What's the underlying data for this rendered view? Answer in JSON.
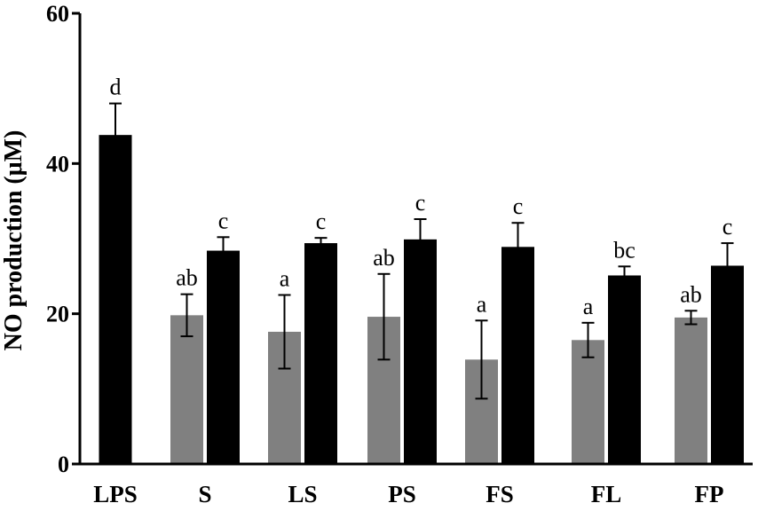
{
  "chart_data": {
    "type": "bar",
    "title": "",
    "xlabel": "",
    "ylabel": "NO production (μM)",
    "ylim": [
      0,
      60
    ],
    "yticks": [
      0,
      20,
      40,
      60
    ],
    "categories": [
      "LPS",
      "S",
      "LS",
      "PS",
      "FS",
      "FL",
      "FP"
    ],
    "series": [
      {
        "name": "gray",
        "color": "#808080",
        "values": [
          null,
          19.8,
          17.6,
          19.6,
          13.9,
          16.5,
          19.5
        ],
        "errors": [
          null,
          2.8,
          4.9,
          5.7,
          5.2,
          2.3,
          0.9
        ],
        "labels": [
          null,
          "ab",
          "a",
          "ab",
          "a",
          "a",
          "ab"
        ]
      },
      {
        "name": "black",
        "color": "#000000",
        "values": [
          43.8,
          28.4,
          29.4,
          29.9,
          28.9,
          25.1,
          26.4
        ],
        "errors": [
          4.2,
          1.8,
          0.7,
          2.7,
          3.2,
          1.2,
          3.0
        ],
        "labels": [
          "d",
          "c",
          "c",
          "c",
          "c",
          "bc",
          "c"
        ]
      }
    ]
  }
}
